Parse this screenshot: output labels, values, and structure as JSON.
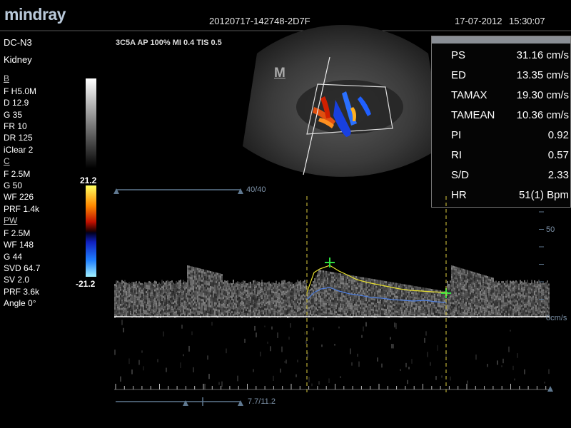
{
  "header": {
    "brand": "mindray",
    "file_id": "20120717-142748-2D7F",
    "date": "17-07-2012",
    "time": "15:30:07"
  },
  "left_panel": {
    "probe": "DC-N3",
    "preset": "Kidney",
    "sections": [
      {
        "name": "B",
        "items": [
          "F H5.0M",
          "D 12.9",
          "G 35",
          "FR 10",
          "DR 125",
          "iClear 2"
        ]
      },
      {
        "name": "C",
        "items": [
          "F 2.5M",
          "G 50",
          "WF 226",
          "PRF 1.4k"
        ]
      },
      {
        "name": "PW",
        "items": [
          "F 2.5M",
          "WF 148",
          "G 44",
          "SVD 64.7",
          "SV 2.0",
          "PRF 3.6k",
          "Angle 0°"
        ]
      }
    ]
  },
  "acoustic_params": "3C5A  AP 100%  MI 0.4  TIS 0.5",
  "color_bar": {
    "top_label": "21.2",
    "bottom_label": "-21.2"
  },
  "image_marker": "M",
  "measurements": [
    {
      "label": "PS",
      "value": "31.16 cm/s"
    },
    {
      "label": "ED",
      "value": "13.35 cm/s"
    },
    {
      "label": "TAMAX",
      "value": "19.30 cm/s"
    },
    {
      "label": "TAMEAN",
      "value": "10.36 cm/s"
    },
    {
      "label": "PI",
      "value": "0.92"
    },
    {
      "label": "RI",
      "value": "0.57"
    },
    {
      "label": "S/D",
      "value": "2.33"
    },
    {
      "label": "HR",
      "value": "51(1) Bpm"
    }
  ],
  "doppler": {
    "top_slider_label": "40/40",
    "bottom_slider_label": "7.7/11.2",
    "scale_label": "50",
    "baseline_label": "0cm/s"
  }
}
